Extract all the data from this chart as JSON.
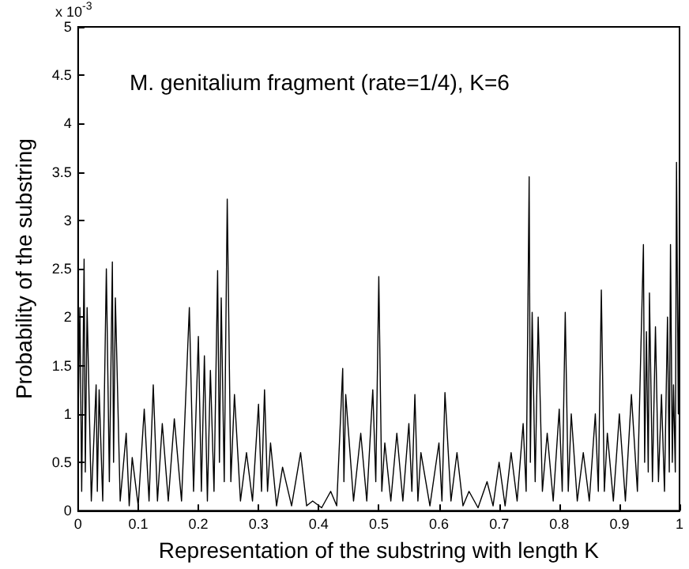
{
  "chart_data": {
    "type": "line",
    "xlabel": "Representation of the substring with length K",
    "ylabel": "Probability of the substring",
    "annotations": [
      "M. genitalium fragment (rate=1/4), K=6",
      "x 10$^{-3}$"
    ],
    "xlim": [
      0,
      1
    ],
    "xticks": [
      0,
      0.1,
      0.2,
      0.3,
      0.4,
      0.5,
      0.6,
      0.7,
      0.8,
      0.9,
      1
    ],
    "ylim": [
      0,
      5
    ],
    "yticks": [
      0,
      0.5,
      1,
      1.5,
      2,
      2.5,
      3,
      3.5,
      4,
      4.5,
      5
    ],
    "grid": false,
    "series": [
      {
        "color": "#000000",
        "x": [
          0,
          0.003,
          0.006,
          0.01,
          0.012,
          0.015,
          0.022,
          0.03,
          0.032,
          0.035,
          0.041,
          0.047,
          0.052,
          0.057,
          0.059,
          0.062,
          0.07,
          0.08,
          0.085,
          0.09,
          0.1,
          0.11,
          0.118,
          0.125,
          0.132,
          0.14,
          0.15,
          0.16,
          0.172,
          0.185,
          0.192,
          0.2,
          0.205,
          0.21,
          0.215,
          0.22,
          0.226,
          0.232,
          0.235,
          0.238,
          0.243,
          0.248,
          0.254,
          0.26,
          0.27,
          0.28,
          0.29,
          0.3,
          0.305,
          0.31,
          0.315,
          0.32,
          0.33,
          0.34,
          0.355,
          0.37,
          0.38,
          0.39,
          0.405,
          0.42,
          0.43,
          0.44,
          0.442,
          0.445,
          0.458,
          0.47,
          0.48,
          0.49,
          0.495,
          0.5,
          0.505,
          0.51,
          0.52,
          0.53,
          0.54,
          0.55,
          0.555,
          0.56,
          0.565,
          0.57,
          0.585,
          0.6,
          0.605,
          0.61,
          0.62,
          0.63,
          0.64,
          0.65,
          0.665,
          0.68,
          0.69,
          0.7,
          0.71,
          0.72,
          0.73,
          0.74,
          0.745,
          0.75,
          0.752,
          0.755,
          0.76,
          0.765,
          0.772,
          0.78,
          0.79,
          0.8,
          0.805,
          0.81,
          0.815,
          0.82,
          0.83,
          0.84,
          0.85,
          0.86,
          0.865,
          0.87,
          0.875,
          0.88,
          0.89,
          0.9,
          0.91,
          0.92,
          0.93,
          0.94,
          0.942,
          0.945,
          0.948,
          0.95,
          0.955,
          0.96,
          0.965,
          0.97,
          0.975,
          0.98,
          0.983,
          0.985,
          0.988,
          0.99,
          0.993,
          0.995,
          0.998,
          1.0
        ],
        "values": [
          0.9,
          2.1,
          0.2,
          2.6,
          0.4,
          2.1,
          0.1,
          1.3,
          0.2,
          1.25,
          0.1,
          2.5,
          0.3,
          2.57,
          0.5,
          2.2,
          0.1,
          0.8,
          0.05,
          0.55,
          0.05,
          1.05,
          0.1,
          1.3,
          0.1,
          0.9,
          0.1,
          0.95,
          0.1,
          2.1,
          0.2,
          1.8,
          0.2,
          1.6,
          0.1,
          1.45,
          0.2,
          2.48,
          0.5,
          2.2,
          0.3,
          3.22,
          0.3,
          1.2,
          0.1,
          0.6,
          0.1,
          1.1,
          0.2,
          1.25,
          0.2,
          0.7,
          0.05,
          0.45,
          0.05,
          0.6,
          0.05,
          0.1,
          0.03,
          0.2,
          0.05,
          1.47,
          0.3,
          1.2,
          0.1,
          0.8,
          0.1,
          1.25,
          0.3,
          2.42,
          0.2,
          0.7,
          0.1,
          0.8,
          0.1,
          0.9,
          0.2,
          1.2,
          0.1,
          0.6,
          0.05,
          0.7,
          0.1,
          1.22,
          0.1,
          0.6,
          0.05,
          0.2,
          0.03,
          0.3,
          0.05,
          0.5,
          0.05,
          0.6,
          0.1,
          0.9,
          0.2,
          3.45,
          0.5,
          2.05,
          0.3,
          2.0,
          0.2,
          0.8,
          0.1,
          1.05,
          0.2,
          2.05,
          0.2,
          1.0,
          0.1,
          0.6,
          0.1,
          1.0,
          0.2,
          2.28,
          0.2,
          0.8,
          0.1,
          1.0,
          0.1,
          1.2,
          0.2,
          2.75,
          0.5,
          1.85,
          0.4,
          2.25,
          0.3,
          1.9,
          0.3,
          1.2,
          0.2,
          2.0,
          0.4,
          2.75,
          0.5,
          1.3,
          0.4,
          3.6,
          1.0,
          3.0
        ]
      }
    ]
  }
}
